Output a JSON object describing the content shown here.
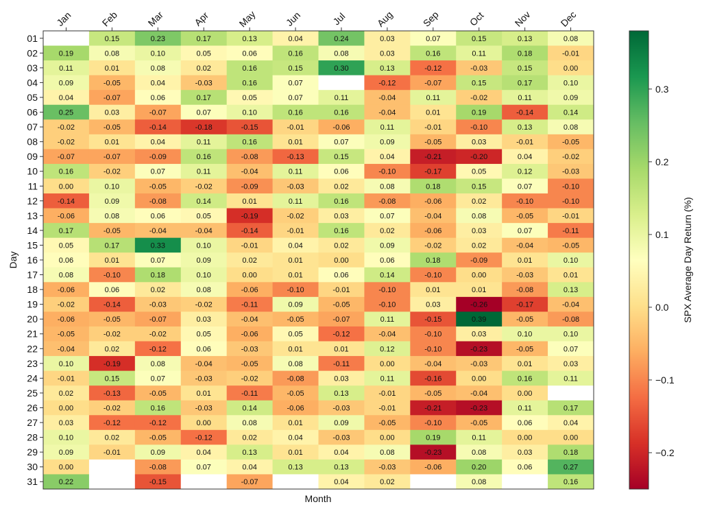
{
  "chart_data": {
    "type": "heatmap",
    "xlabel": "Month",
    "ylabel": "Day",
    "colorbar_label": "SPX Average Day Return (%)",
    "colorbar_range": [
      -0.25,
      0.38
    ],
    "colorbar_ticks": [
      "-0.2",
      "-0.1",
      "0.0",
      "0.1",
      "0.2",
      "0.3"
    ],
    "colormap": [
      "#a50026",
      "#d73027",
      "#f46d43",
      "#fdae61",
      "#fee08b",
      "#ffffbf",
      "#d9ef8b",
      "#a6d96a",
      "#66bd63",
      "#1a9850",
      "#006837"
    ],
    "months": [
      "Jan",
      "Feb",
      "Mar",
      "Apr",
      "May",
      "Jun",
      "Jul",
      "Aug",
      "Sep",
      "Oct",
      "Nov",
      "Dec"
    ],
    "days": [
      "01",
      "02",
      "03",
      "04",
      "05",
      "06",
      "07",
      "08",
      "09",
      "10",
      "11",
      "12",
      "13",
      "14",
      "15",
      "16",
      "17",
      "18",
      "19",
      "20",
      "21",
      "22",
      "23",
      "24",
      "25",
      "26",
      "27",
      "28",
      "29",
      "30",
      "31"
    ],
    "values": [
      [
        null,
        0.15,
        0.23,
        0.17,
        0.13,
        0.04,
        0.24,
        0.03,
        0.07,
        0.15,
        0.13,
        0.08
      ],
      [
        0.19,
        0.08,
        0.1,
        0.05,
        0.06,
        0.16,
        0.08,
        0.03,
        0.16,
        0.11,
        0.18,
        -0.01
      ],
      [
        0.11,
        0.01,
        0.08,
        0.02,
        0.16,
        0.15,
        0.3,
        0.13,
        -0.12,
        -0.03,
        0.15,
        0.0
      ],
      [
        0.09,
        -0.05,
        0.04,
        -0.03,
        0.16,
        0.07,
        null,
        -0.12,
        -0.07,
        0.15,
        0.17,
        0.1
      ],
      [
        0.04,
        -0.07,
        0.06,
        0.17,
        0.05,
        0.07,
        0.11,
        -0.04,
        0.11,
        -0.02,
        0.11,
        0.09
      ],
      [
        0.25,
        0.03,
        -0.07,
        0.07,
        0.1,
        0.16,
        0.16,
        -0.04,
        0.01,
        0.19,
        -0.14,
        0.14
      ],
      [
        -0.02,
        -0.05,
        -0.14,
        -0.18,
        -0.15,
        -0.01,
        -0.06,
        0.11,
        -0.01,
        -0.1,
        0.13,
        0.08
      ],
      [
        -0.02,
        0.01,
        0.04,
        0.11,
        0.16,
        0.01,
        0.07,
        0.09,
        -0.05,
        0.03,
        -0.01,
        -0.05
      ],
      [
        -0.07,
        -0.07,
        -0.09,
        0.16,
        -0.08,
        -0.13,
        0.15,
        0.04,
        -0.21,
        -0.2,
        0.04,
        -0.02
      ],
      [
        0.16,
        -0.02,
        0.07,
        0.11,
        -0.04,
        0.11,
        0.06,
        -0.1,
        -0.17,
        0.05,
        0.12,
        -0.03
      ],
      [
        0.0,
        0.1,
        -0.05,
        -0.02,
        -0.09,
        -0.03,
        0.02,
        0.08,
        0.18,
        0.15,
        0.07,
        -0.1
      ],
      [
        -0.14,
        0.09,
        -0.08,
        0.14,
        0.01,
        0.11,
        0.16,
        -0.08,
        -0.06,
        0.02,
        -0.1,
        -0.1
      ],
      [
        -0.06,
        0.08,
        0.06,
        0.05,
        -0.19,
        -0.02,
        0.03,
        0.07,
        -0.04,
        0.08,
        -0.05,
        -0.01
      ],
      [
        0.17,
        -0.05,
        -0.04,
        -0.04,
        -0.14,
        -0.01,
        0.16,
        0.02,
        -0.06,
        0.03,
        0.07,
        -0.11
      ],
      [
        0.05,
        0.17,
        0.33,
        0.1,
        -0.01,
        0.04,
        0.02,
        0.09,
        -0.02,
        0.02,
        -0.04,
        -0.05
      ],
      [
        0.06,
        0.01,
        0.07,
        0.09,
        0.02,
        0.01,
        0.0,
        0.06,
        0.18,
        -0.09,
        0.01,
        0.1
      ],
      [
        0.08,
        -0.1,
        0.18,
        0.1,
        0.0,
        0.01,
        0.06,
        0.14,
        -0.1,
        0.0,
        -0.03,
        0.01
      ],
      [
        -0.06,
        0.06,
        0.02,
        0.08,
        -0.06,
        -0.1,
        -0.01,
        -0.1,
        0.01,
        0.01,
        -0.08,
        0.13
      ],
      [
        -0.02,
        -0.14,
        -0.03,
        -0.02,
        -0.11,
        0.09,
        -0.05,
        -0.1,
        0.03,
        -0.26,
        -0.17,
        -0.04
      ],
      [
        -0.06,
        -0.05,
        -0.07,
        0.03,
        -0.04,
        -0.05,
        -0.07,
        0.11,
        -0.15,
        0.39,
        -0.05,
        -0.08
      ],
      [
        -0.05,
        -0.02,
        -0.02,
        0.05,
        -0.06,
        0.05,
        -0.12,
        -0.04,
        -0.1,
        0.03,
        0.1,
        0.1
      ],
      [
        -0.04,
        0.02,
        -0.12,
        0.06,
        -0.03,
        0.01,
        0.01,
        0.12,
        -0.1,
        -0.23,
        -0.05,
        0.07
      ],
      [
        0.1,
        -0.19,
        0.08,
        -0.04,
        -0.05,
        0.08,
        -0.11,
        -0.0,
        -0.04,
        -0.03,
        0.01,
        0.03
      ],
      [
        -0.01,
        0.15,
        0.07,
        -0.03,
        -0.02,
        -0.08,
        0.03,
        0.11,
        -0.16,
        -0.0,
        0.16,
        0.11
      ],
      [
        0.02,
        -0.13,
        -0.05,
        0.01,
        -0.11,
        -0.05,
        0.13,
        -0.01,
        -0.05,
        -0.04,
        -0.0,
        null
      ],
      [
        -0.0,
        -0.02,
        0.16,
        -0.03,
        0.14,
        -0.06,
        -0.03,
        -0.01,
        -0.21,
        -0.23,
        0.11,
        0.17
      ],
      [
        0.03,
        -0.12,
        -0.12,
        0.0,
        0.08,
        0.01,
        0.09,
        -0.05,
        -0.1,
        -0.05,
        0.06,
        0.04
      ],
      [
        0.1,
        0.02,
        -0.05,
        -0.12,
        0.02,
        0.04,
        -0.03,
        0.0,
        0.19,
        0.11,
        -0.0,
        0.0
      ],
      [
        0.09,
        -0.01,
        0.09,
        0.04,
        0.13,
        0.01,
        0.04,
        0.08,
        -0.23,
        0.08,
        0.03,
        0.18
      ],
      [
        -0.0,
        null,
        -0.08,
        0.07,
        0.04,
        0.13,
        0.13,
        -0.03,
        -0.06,
        0.2,
        0.06,
        0.27
      ],
      [
        0.22,
        null,
        -0.15,
        null,
        -0.07,
        null,
        0.04,
        0.02,
        null,
        0.08,
        null,
        0.16
      ]
    ]
  }
}
